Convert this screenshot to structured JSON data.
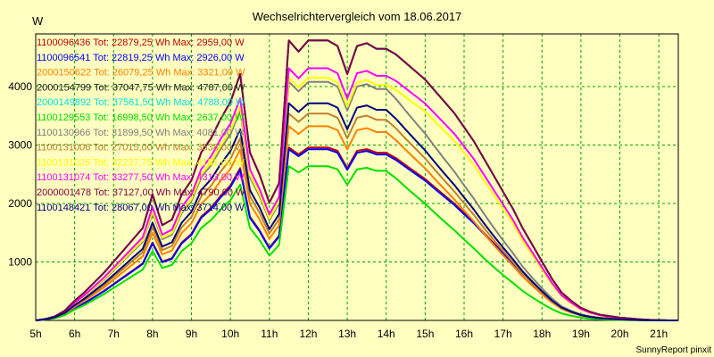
{
  "chart_data": {
    "type": "line",
    "title": "Wechselrichtervergleich vom 18.06.2017",
    "ylabel": "W",
    "xlabel": "",
    "footer": "SunnyReport pinxit",
    "x_ticks": [
      "5h",
      "6h",
      "7h",
      "8h",
      "9h",
      "10h",
      "11h",
      "12h",
      "13h",
      "14h",
      "15h",
      "16h",
      "17h",
      "18h",
      "19h",
      "20h",
      "21h"
    ],
    "y_ticks": [
      "1000",
      "2000",
      "3000",
      "4000"
    ],
    "xlim": [
      5,
      21.5
    ],
    "ylim": [
      0,
      4900
    ],
    "grid": true,
    "legend_position": "top-left",
    "x": [
      5,
      5.25,
      5.5,
      5.75,
      6,
      6.25,
      6.5,
      6.75,
      7,
      7.25,
      7.5,
      7.75,
      8,
      8.25,
      8.5,
      8.75,
      9,
      9.25,
      9.5,
      9.75,
      10,
      10.25,
      10.5,
      10.75,
      11,
      11.25,
      11.5,
      11.75,
      12,
      12.25,
      12.5,
      12.75,
      13,
      13.25,
      13.5,
      13.75,
      14,
      14.25,
      14.5,
      14.75,
      15,
      15.25,
      15.5,
      15.75,
      16,
      16.25,
      16.5,
      16.75,
      17,
      17.25,
      17.5,
      17.75,
      18,
      18.25,
      18.5,
      18.75,
      19,
      19.25,
      19.5,
      19.75,
      20,
      20.25,
      20.5,
      20.75,
      21,
      21.25,
      21.5
    ],
    "base_profile": [
      0,
      0.005,
      0.015,
      0.035,
      0.07,
      0.1,
      0.135,
      0.17,
      0.21,
      0.25,
      0.29,
      0.33,
      0.45,
      0.34,
      0.36,
      0.45,
      0.5,
      0.6,
      0.65,
      0.72,
      0.78,
      0.88,
      0.6,
      0.52,
      0.42,
      0.49,
      1.0,
      0.96,
      1.03,
      1.0,
      1.02,
      0.98,
      0.88,
      0.98,
      0.99,
      0.97,
      0.97,
      0.95,
      0.92,
      0.89,
      0.86,
      0.82,
      0.78,
      0.74,
      0.69,
      0.64,
      0.58,
      0.52,
      0.46,
      0.4,
      0.33,
      0.27,
      0.21,
      0.15,
      0.1,
      0.07,
      0.045,
      0.03,
      0.02,
      0.015,
      0.01,
      0.007,
      0.004,
      0.002,
      0.001,
      0,
      0
    ],
    "series": [
      {
        "id": "1100096436",
        "label": "1100096436 Tot: 22879,25 Wh Max: 2959,00 W",
        "color": "#c00000",
        "max": 2959,
        "shape": "a"
      },
      {
        "id": "1100096541",
        "label": "1100096541 Tot: 22819,25 Wh Max: 2926,00 W",
        "color": "#0000ff",
        "max": 2926,
        "shape": "a"
      },
      {
        "id": "2000150622",
        "label": "2000150622 Tot: 26079,25 Wh Max: 3321,00 W",
        "color": "#ff8000",
        "max": 3321,
        "shape": "b"
      },
      {
        "id": "2000154799",
        "label": "2000154799 Tot: 37047,75 Wh Max: 4787,00 W",
        "color": "#202020",
        "max": 4787,
        "shape": "c"
      },
      {
        "id": "2000149892",
        "label": "2000149892 Tot: 37561,50 Wh Max: 4788,00 W",
        "color": "#00e0e0",
        "max": 4788,
        "shape": "c"
      },
      {
        "id": "1100129553",
        "label": "1100129553 Tot: 16998,50 Wh Max: 2637,00 W",
        "color": "#00e000",
        "max": 2637,
        "shape": "d"
      },
      {
        "id": "1100130966",
        "label": "1100130966 Tot: 31899,50 Wh Max: 4081,00 W",
        "color": "#808080",
        "max": 4081,
        "shape": "b"
      },
      {
        "id": "1100131006",
        "label": "1100131006 Tot: 27015,00 Wh Max: 3538,00 W",
        "color": "#c08030",
        "max": 3538,
        "shape": "b"
      },
      {
        "id": "1100131025",
        "label": "1100131025 Tot: 32227,75 Wh Max: 4151,00 W",
        "color": "#ffff00",
        "max": 4151,
        "shape": "c"
      },
      {
        "id": "1100131074",
        "label": "1100131074 Tot: 33277,50 Wh Max: 4313,00 W",
        "color": "#ff00ff",
        "max": 4313,
        "shape": "c"
      },
      {
        "id": "2000001478",
        "label": "2000001478 Tot: 37127,00 Wh Max: 4790,00 W",
        "color": "#800040",
        "max": 4790,
        "shape": "c"
      },
      {
        "id": "1100148421",
        "label": "1100148421 Tot: 28067,00 Wh Max: 3714,00 W",
        "color": "#000080",
        "max": 3714,
        "shape": "b"
      }
    ]
  }
}
